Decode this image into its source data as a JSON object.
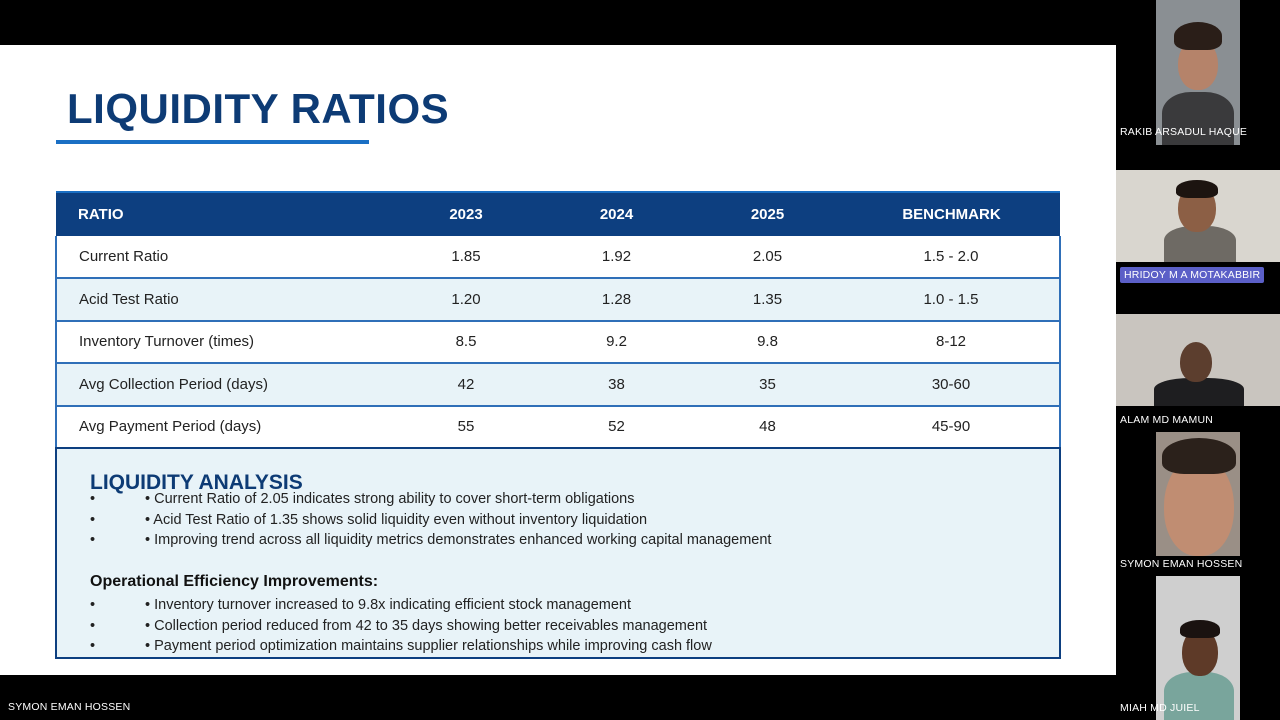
{
  "slide": {
    "title": "LIQUIDITY RATIOS",
    "table": {
      "headers": [
        "RATIO",
        "2023",
        "2024",
        "2025",
        "BENCHMARK"
      ],
      "rows": [
        [
          "Current Ratio",
          "1.85",
          "1.92",
          "2.05",
          "1.5 - 2.0"
        ],
        [
          "Acid Test Ratio",
          "1.20",
          "1.28",
          "1.35",
          "1.0 - 1.5"
        ],
        [
          "Inventory Turnover (times)",
          "8.5",
          "9.2",
          "9.8",
          "8-12"
        ],
        [
          "Avg Collection Period (days)",
          "42",
          "38",
          "35",
          "30-60"
        ],
        [
          "Avg Payment Period (days)",
          "55",
          "52",
          "48",
          "45-90"
        ]
      ]
    },
    "analysis": {
      "title": "LIQUIDITY ANALYSIS",
      "outer_bullet": "•",
      "bullets": [
        "• Current Ratio of 2.05 indicates strong ability to cover short-term obligations",
        "• Acid Test Ratio of 1.35 shows solid liquidity even without inventory liquidation",
        "• Improving trend across all liquidity metrics demonstrates enhanced working capital management"
      ],
      "subheading": "Operational Efficiency Improvements:",
      "bullets2": [
        "• Inventory turnover increased to 9.8x indicating efficient stock management",
        "• Collection period reduced from 42 to 35 days showing better receivables management",
        "• Payment period optimization maintains supplier relationships while improving cash flow"
      ]
    }
  },
  "participants": [
    {
      "name": "RAKIB ARSADUL HAQUE"
    },
    {
      "name": "HRIDOY M A MOTAKABBIR"
    },
    {
      "name": "ALAM MD MAMUN"
    },
    {
      "name": "SYMON EMAN HOSSEN"
    },
    {
      "name": "MIAH MD JUIEL"
    }
  ],
  "presenter_name": "SYMON EMAN HOSSEN",
  "colors": {
    "title": "#0d3b75",
    "header_bg": "#0d3f80",
    "row_alt": "#e8f3f8",
    "accent": "#1a6fc4",
    "speaking_highlight": "#5b5fc7"
  }
}
